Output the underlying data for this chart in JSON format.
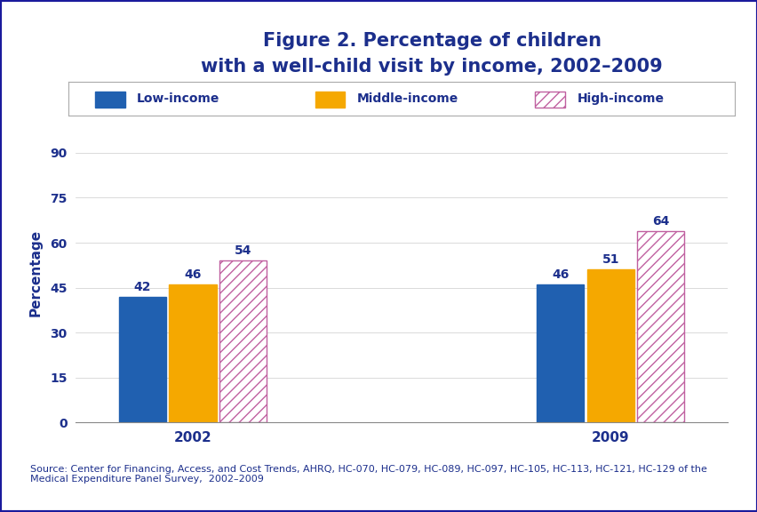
{
  "title": "Figure 2. Percentage of children\nwith a well-child visit by income, 2002–2009",
  "title_color": "#1c2f8c",
  "title_fontsize": 15,
  "ylabel": "Percentage",
  "ylabel_color": "#1c2f8c",
  "ylabel_fontsize": 11,
  "years": [
    "2002",
    "2009"
  ],
  "categories": [
    "Low-income",
    "Middle-income",
    "High-income"
  ],
  "values_2002": [
    42,
    46,
    54
  ],
  "values_2009": [
    46,
    51,
    64
  ],
  "bar_colors": [
    "#2060b0",
    "#f5a800",
    "#ffffff"
  ],
  "bar_edge_colors": [
    "#2060b0",
    "#f5a800",
    "#c060a0"
  ],
  "hatch_patterns": [
    "",
    "",
    "///"
  ],
  "hatch_color": "#c060a0",
  "ylim": [
    0,
    100
  ],
  "yticks": [
    0,
    15,
    30,
    45,
    60,
    75,
    90
  ],
  "tick_color": "#1c2f8c",
  "tick_fontsize": 10,
  "grid_color": "#cccccc",
  "background_color": "#ffffff",
  "bar_width": 0.18,
  "value_label_color": "#1c2f8c",
  "value_label_fontsize": 10,
  "legend_labels": [
    "Low-income",
    "Middle-income",
    "High-income"
  ],
  "outer_border_color": "#1a1a9c",
  "blue_stripe_color": "#1a1a9c",
  "source_text": "Source: Center for Financing, Access, and Cost Trends, AHRQ, HC-070, HC-079, HC-089, HC-097, HC-105, HC-113, HC-121, HC-129 of the\nMedical Expenditure Panel Survey,  2002–2009",
  "source_fontsize": 8,
  "source_color": "#1c2f8c",
  "xtick_color": "#1c2f8c",
  "xtick_fontsize": 11
}
